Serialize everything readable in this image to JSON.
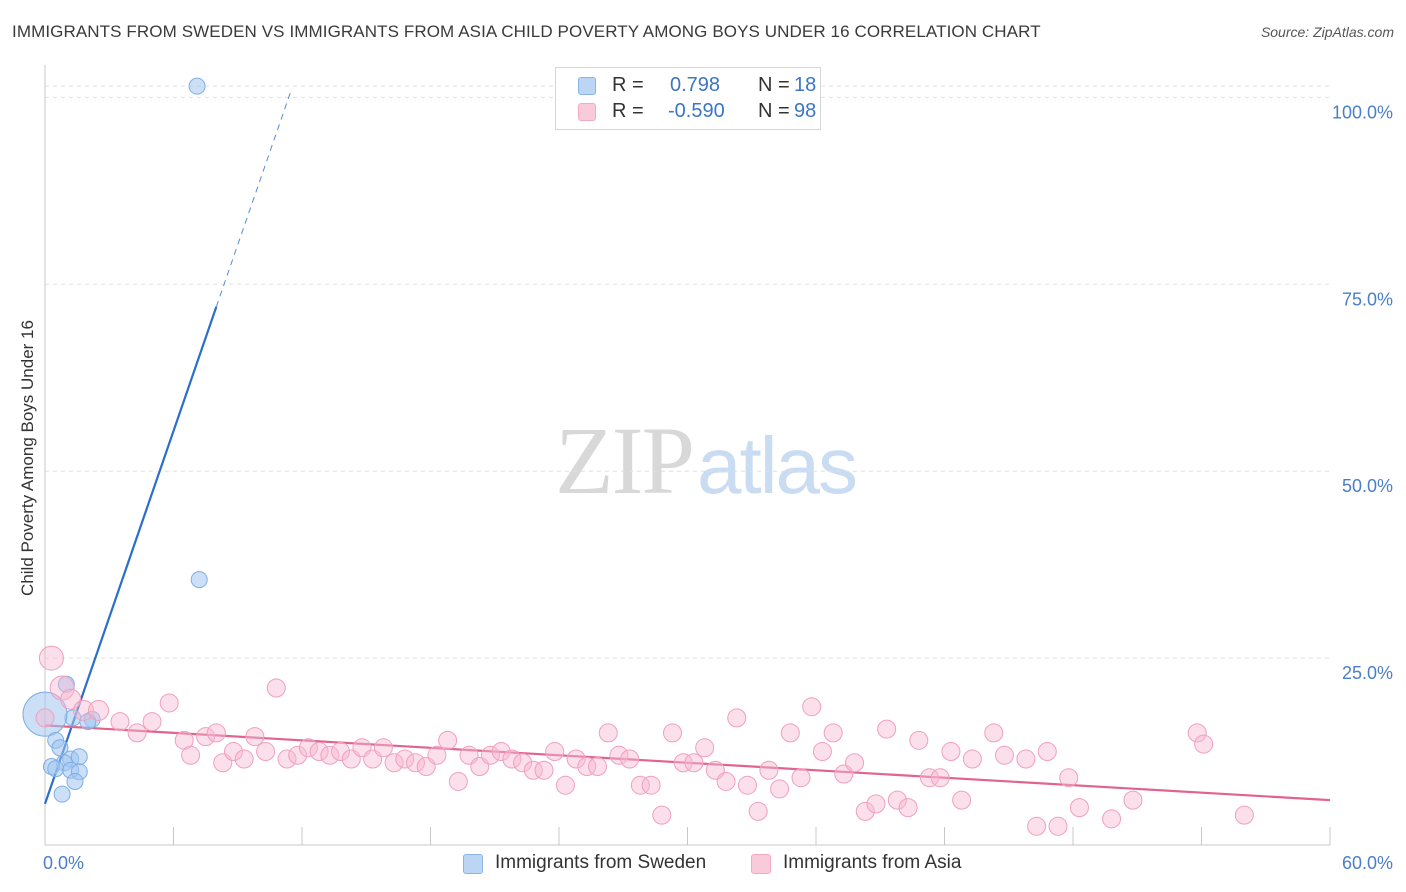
{
  "chart_data": {
    "type": "scatter",
    "title": "IMMIGRANTS FROM SWEDEN VS IMMIGRANTS FROM ASIA CHILD POVERTY AMONG BOYS UNDER 16 CORRELATION CHART",
    "source": "Source: ZipAtlas.com",
    "xlabel": "",
    "ylabel": "Child Poverty Among Boys Under 16",
    "xlim": [
      0,
      60
    ],
    "ylim": [
      0,
      105
    ],
    "x_ticks": [
      0,
      6,
      12,
      18,
      24,
      30,
      36,
      42,
      48,
      54,
      60
    ],
    "x_tick_labels": {
      "0": "0.0%",
      "60": "60.0%"
    },
    "y_ticks": [
      25,
      50,
      75,
      100
    ],
    "y_tick_labels": [
      "25.0%",
      "50.0%",
      "75.0%",
      "100.0%"
    ],
    "legend": [
      {
        "r_label": "R =",
        "r_value": "0.798",
        "n_label": "N =",
        "n_value": "18"
      },
      {
        "r_label": "R =",
        "r_value": "-0.590",
        "n_label": "N =",
        "n_value": "98"
      }
    ],
    "series": [
      {
        "name": "Immigrants from Sweden",
        "color": "#8ab4e8",
        "line_color": "#2b6fcb",
        "trend": {
          "x0": 0,
          "y0": 5.5,
          "x1": 8.0,
          "y1": 72,
          "x_dash_end": 11.5,
          "y_dash_end": 101
        },
        "points": [
          [
            7.1,
            101.5
          ],
          [
            7.2,
            35.5
          ],
          [
            1.0,
            21.5
          ],
          [
            1.3,
            17.0
          ],
          [
            2.2,
            16.8
          ],
          [
            0.0,
            17.5
          ],
          [
            0.5,
            14.0
          ],
          [
            0.7,
            13.0
          ],
          [
            1.2,
            11.5
          ],
          [
            0.9,
            11.0
          ],
          [
            0.3,
            10.5
          ],
          [
            0.5,
            10.2
          ],
          [
            1.6,
            11.8
          ],
          [
            1.2,
            10.0
          ],
          [
            1.6,
            9.8
          ],
          [
            1.4,
            8.5
          ],
          [
            0.8,
            6.8
          ],
          [
            2.0,
            16.5
          ]
        ],
        "sizes": [
          8,
          8,
          8,
          8,
          8,
          22,
          8,
          8,
          8,
          8,
          8,
          8,
          8,
          8,
          8,
          8,
          8,
          8
        ]
      },
      {
        "name": "Immigrants from Asia",
        "color": "#f5a9c4",
        "line_color": "#e0648e",
        "trend": {
          "x0": 0,
          "y0": 16.0,
          "x1": 60,
          "y1": 6.0
        },
        "points": [
          [
            0.3,
            25.0
          ],
          [
            0.8,
            21.0
          ],
          [
            1.2,
            19.5
          ],
          [
            1.8,
            18.0
          ],
          [
            2.5,
            18.0
          ],
          [
            3.5,
            16.5
          ],
          [
            4.3,
            15.0
          ],
          [
            5.0,
            16.5
          ],
          [
            5.8,
            19.0
          ],
          [
            6.5,
            14.0
          ],
          [
            6.8,
            12.0
          ],
          [
            7.5,
            14.5
          ],
          [
            8.0,
            15.0
          ],
          [
            8.3,
            11.0
          ],
          [
            8.8,
            12.5
          ],
          [
            9.3,
            11.5
          ],
          [
            9.8,
            14.5
          ],
          [
            10.3,
            12.5
          ],
          [
            10.8,
            21.0
          ],
          [
            11.3,
            11.5
          ],
          [
            11.8,
            12.0
          ],
          [
            12.3,
            13.0
          ],
          [
            12.8,
            12.5
          ],
          [
            13.3,
            12.0
          ],
          [
            13.8,
            12.5
          ],
          [
            14.3,
            11.5
          ],
          [
            14.8,
            13.0
          ],
          [
            15.3,
            11.5
          ],
          [
            15.8,
            13.0
          ],
          [
            16.3,
            11.0
          ],
          [
            16.8,
            11.5
          ],
          [
            17.3,
            11.0
          ],
          [
            17.8,
            10.5
          ],
          [
            18.3,
            12.0
          ],
          [
            18.8,
            14.0
          ],
          [
            19.3,
            8.5
          ],
          [
            19.8,
            12.0
          ],
          [
            20.3,
            10.5
          ],
          [
            20.8,
            12.0
          ],
          [
            21.3,
            12.5
          ],
          [
            21.8,
            11.5
          ],
          [
            22.3,
            11.0
          ],
          [
            22.8,
            10.0
          ],
          [
            23.3,
            10.0
          ],
          [
            23.8,
            12.5
          ],
          [
            24.3,
            8.0
          ],
          [
            24.8,
            11.5
          ],
          [
            25.3,
            10.5
          ],
          [
            25.8,
            10.5
          ],
          [
            26.3,
            15.0
          ],
          [
            26.8,
            12.0
          ],
          [
            27.3,
            11.5
          ],
          [
            27.8,
            8.0
          ],
          [
            28.3,
            8.0
          ],
          [
            28.8,
            4.0
          ],
          [
            29.3,
            15.0
          ],
          [
            29.8,
            11.0
          ],
          [
            30.3,
            11.0
          ],
          [
            30.8,
            13.0
          ],
          [
            31.3,
            10.0
          ],
          [
            31.8,
            8.5
          ],
          [
            32.3,
            17.0
          ],
          [
            32.8,
            8.0
          ],
          [
            33.3,
            4.5
          ],
          [
            33.8,
            10.0
          ],
          [
            34.3,
            7.5
          ],
          [
            34.8,
            15.0
          ],
          [
            35.3,
            9.0
          ],
          [
            35.8,
            18.5
          ],
          [
            36.3,
            12.5
          ],
          [
            36.8,
            15.0
          ],
          [
            37.3,
            9.5
          ],
          [
            37.8,
            11.0
          ],
          [
            38.3,
            4.5
          ],
          [
            38.8,
            5.5
          ],
          [
            39.3,
            15.5
          ],
          [
            39.8,
            6.0
          ],
          [
            40.3,
            5.0
          ],
          [
            40.8,
            14.0
          ],
          [
            41.3,
            9.0
          ],
          [
            41.8,
            9.0
          ],
          [
            42.3,
            12.5
          ],
          [
            42.8,
            6.0
          ],
          [
            43.3,
            11.5
          ],
          [
            44.3,
            15.0
          ],
          [
            44.8,
            12.0
          ],
          [
            45.8,
            11.5
          ],
          [
            46.3,
            2.5
          ],
          [
            46.8,
            12.5
          ],
          [
            47.3,
            2.5
          ],
          [
            47.8,
            9.0
          ],
          [
            48.3,
            5.0
          ],
          [
            49.8,
            3.5
          ],
          [
            50.8,
            6.0
          ],
          [
            53.8,
            15.0
          ],
          [
            54.1,
            13.5
          ],
          [
            56.0,
            4.0
          ],
          [
            0.0,
            17.0
          ]
        ],
        "sizes": [
          12,
          12,
          10,
          10,
          10,
          9,
          9,
          9,
          9,
          9,
          9,
          9,
          9,
          9,
          9,
          9,
          9,
          9,
          9,
          9,
          9,
          9,
          9,
          9,
          9,
          9,
          9,
          9,
          9,
          9,
          9,
          9,
          9,
          9,
          9,
          9,
          9,
          9,
          9,
          9,
          9,
          9,
          9,
          9,
          9,
          9,
          9,
          9,
          9,
          9,
          9,
          9,
          9,
          9,
          9,
          9,
          9,
          9,
          9,
          9,
          9,
          9,
          9,
          9,
          9,
          9,
          9,
          9,
          9,
          9,
          9,
          9,
          9,
          9,
          9,
          9,
          9,
          9,
          9,
          9,
          9,
          9,
          9,
          9,
          9,
          9,
          9,
          9,
          9,
          9,
          9,
          9,
          9,
          9,
          9,
          9,
          9,
          9
        ]
      }
    ]
  },
  "watermark": {
    "zip": "ZIP",
    "atlas": "atlas"
  }
}
